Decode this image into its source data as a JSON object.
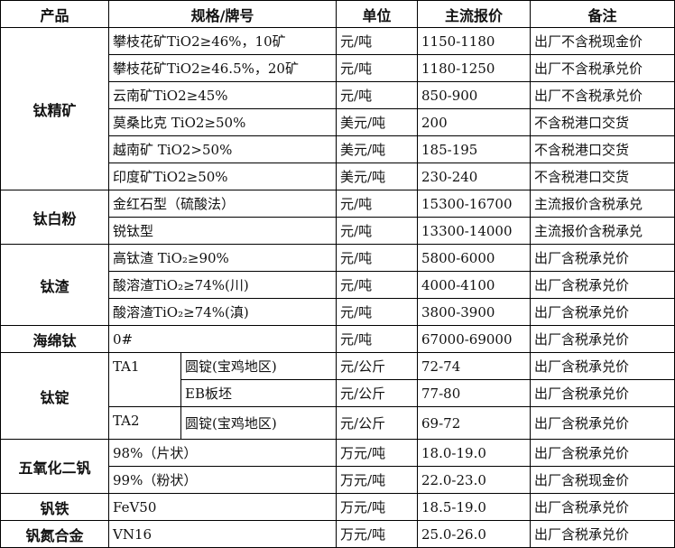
{
  "headers": [
    "产品",
    "规格/牌号",
    "单位",
    "主流报价",
    "备注"
  ],
  "groups": [
    {
      "product": "钛精矿",
      "rows": [
        {
          "spec": "攀枝花矿TiO2≥46%，10矿",
          "unit": "元/吨",
          "price": "1150-1180",
          "note": "出厂不含税现金价"
        },
        {
          "spec": "攀枝花矿TiO2≥46.5%，20矿",
          "unit": "元/吨",
          "price": "1180-1250",
          "note": "出厂不含税承兑价"
        },
        {
          "spec": "云南矿TiO2≥45%",
          "unit": "元/吨",
          "price": "850-900",
          "note": "出厂不含税承兑价"
        },
        {
          "spec": "莫桑比克 TiO2≥50%",
          "unit": "美元/吨",
          "price": "200",
          "note": "不含税港口交货"
        },
        {
          "spec": "越南矿 TiO2>50%",
          "unit": "美元/吨",
          "price": "185-195",
          "note": "不含税港口交货"
        },
        {
          "spec": "印度矿TiO2≥50%",
          "unit": "美元/吨",
          "price": "230-240",
          "note": "不含税港口交货"
        }
      ]
    },
    {
      "product": "钛白粉",
      "rows": [
        {
          "spec": "金红石型（硫酸法）",
          "unit": "元/吨",
          "price": "15300-16700",
          "note": "主流报价含税承兑"
        },
        {
          "spec": "锐钛型",
          "unit": "元/吨",
          "price": "13300-14000",
          "note": "主流报价含税承兑"
        }
      ]
    },
    {
      "product": "钛渣",
      "rows": [
        {
          "spec": "高钛渣 TiO₂≥90%",
          "unit": "元/吨",
          "price": "5800-6000",
          "note": "出厂含税承兑价"
        },
        {
          "spec": "酸溶渣TiO₂≥74%(川)",
          "unit": "元/吨",
          "price": "4000-4100",
          "note": "出厂含税承兑价"
        },
        {
          "spec": "酸溶渣TiO₂≥74%(滇)",
          "unit": "元/吨",
          "price": "3800-3900",
          "note": "出厂含税承兑价"
        }
      ]
    },
    {
      "product": "海绵钛",
      "rows": [
        {
          "spec": "0#",
          "unit": "元/吨",
          "price": "67000-69000",
          "note": "出厂含税承兑价"
        }
      ]
    },
    {
      "product": "钛锭",
      "rows": [
        {
          "grade": "TA1",
          "grade_rows": 2,
          "spec": "圆锭(宝鸡地区)",
          "unit": "元/公斤",
          "price": "72-74",
          "note": "出厂含税承兑价"
        },
        {
          "spec": "EB板坯",
          "unit": "元/公斤",
          "price": "77-80",
          "note": "出厂含税承兑价"
        },
        {
          "grade": "TA2",
          "grade_rows": 1,
          "spec": "圆锭(宝鸡地区)",
          "unit": "元/公斤",
          "price": "69-72",
          "note": "出厂含税承兑价"
        }
      ]
    },
    {
      "product": "五氧化二钒",
      "rows": [
        {
          "spec": "98%（片状）",
          "unit": "万元/吨",
          "price": "18.0-19.0",
          "note": "出厂含税承兑价"
        },
        {
          "spec": "99%（粉状）",
          "unit": "万元/吨",
          "price": "22.0-23.0",
          "note": "出厂含税现金价"
        }
      ]
    },
    {
      "product": "钒铁",
      "rows": [
        {
          "spec": "FeV50",
          "unit": "万元/吨",
          "price": "18.5-19.0",
          "note": "出厂含税承兑价"
        }
      ]
    },
    {
      "product": "钒氮合金",
      "rows": [
        {
          "spec": "VN16",
          "unit": "万元/吨",
          "price": "25.0-26.0",
          "note": "出厂含税承兑价"
        }
      ]
    }
  ]
}
